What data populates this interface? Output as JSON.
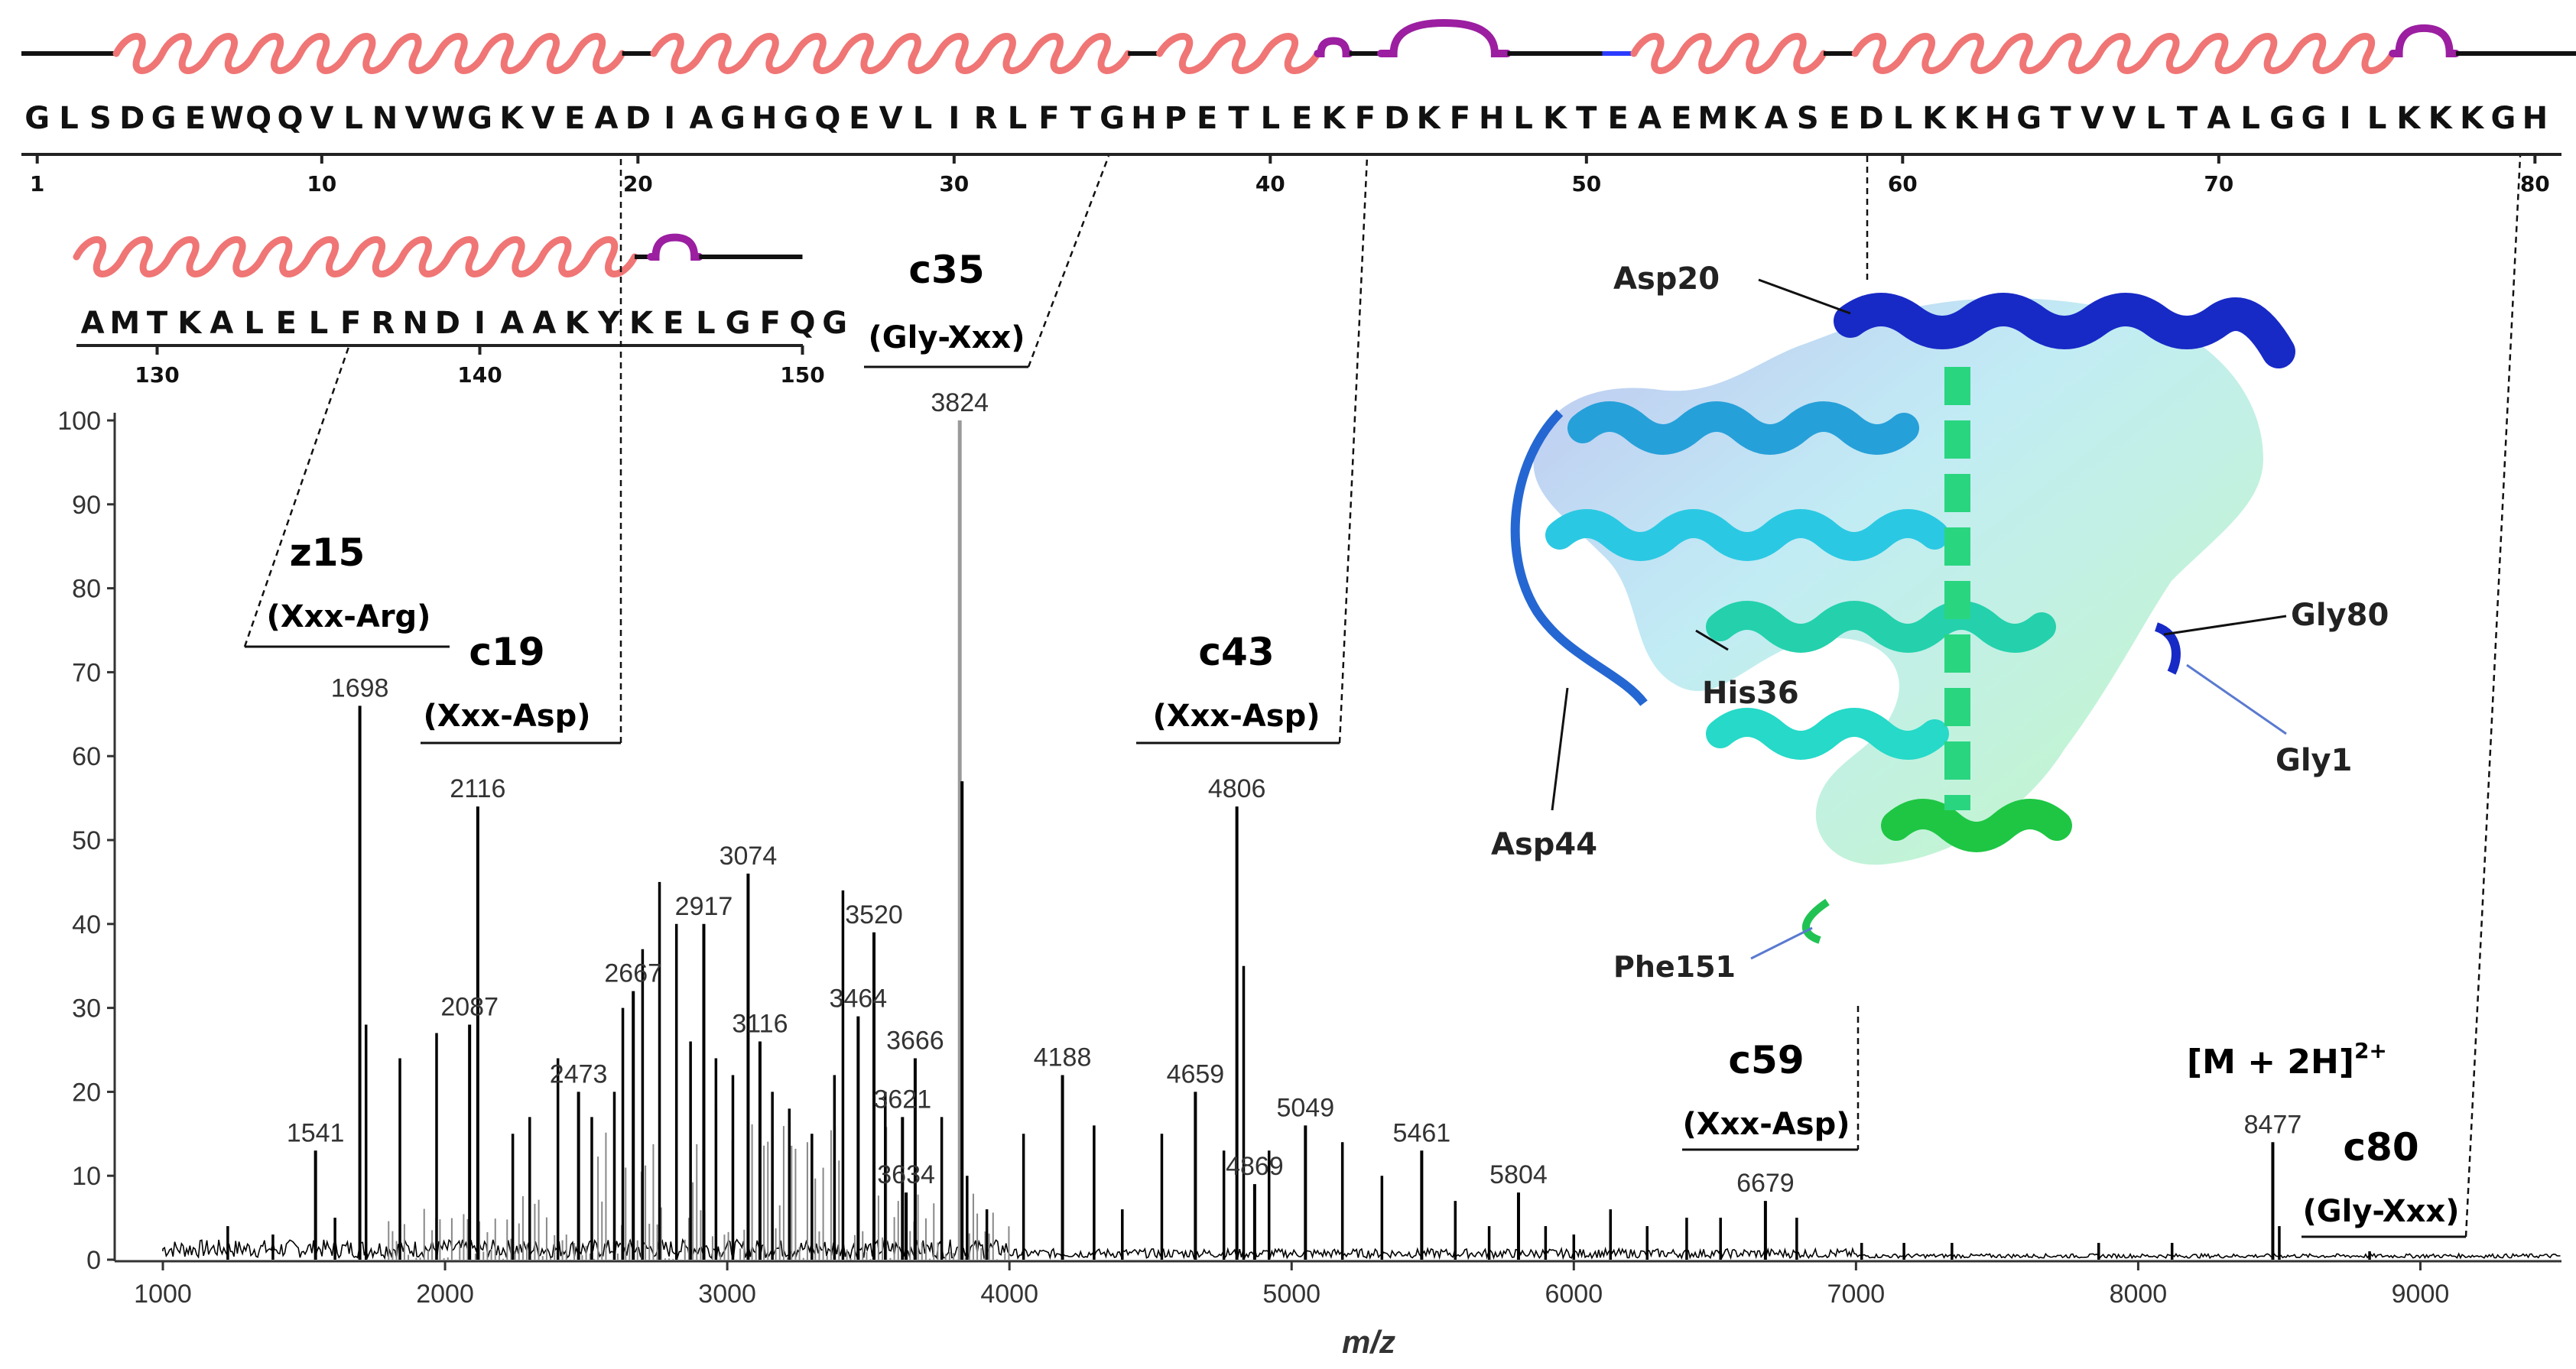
{
  "sequence_top": {
    "text": "GLSDGEWQQVLNVWGKVEADIAGHGQEVLIRLFTGHPETLEKFDKFHLKTEAEMKASEDLKKHGTVVLTALGGILKKKGH",
    "ticks": [
      "1",
      "10",
      "20",
      "30",
      "40",
      "50",
      "60",
      "70",
      "80"
    ]
  },
  "sequence_bottom": {
    "text": "AMTKALELFRNDIAAKYKELGFQG",
    "ticks": [
      "130",
      "140",
      "150"
    ]
  },
  "structure_labels": [
    "Asp20",
    "Gly80",
    "His36",
    "Gly1",
    "Asp44",
    "Phe151"
  ],
  "fragment_labels": [
    {
      "ion": "z15",
      "bond": "(Xxx-Arg)"
    },
    {
      "ion": "c19",
      "bond": "(Xxx-Asp)"
    },
    {
      "ion": "c35",
      "bond": "(Gly-Xxx)"
    },
    {
      "ion": "c43",
      "bond": "(Xxx-Asp)"
    },
    {
      "ion": "c59",
      "bond": "(Xxx-Asp)"
    },
    {
      "ion": "c80",
      "bond": "(Gly-Xxx)"
    }
  ],
  "precursor_label": "[M + 2H]",
  "precursor_charge": "2+",
  "chart_data": {
    "type": "line",
    "xlabel": "m/z",
    "ylabel": "",
    "xlim": [
      1000,
      9500
    ],
    "ylim": [
      0,
      100
    ],
    "x_ticks": [
      "1000",
      "2000",
      "3000",
      "4000",
      "5000",
      "6000",
      "7000",
      "8000",
      "9000"
    ],
    "y_ticks": [
      "0",
      "10",
      "20",
      "30",
      "40",
      "50",
      "60",
      "70",
      "80",
      "90",
      "100"
    ],
    "labeled_peaks": [
      {
        "mz": "1541",
        "x": 1541,
        "y": 13
      },
      {
        "mz": "1698",
        "x": 1698,
        "y": 66
      },
      {
        "mz": "2087",
        "x": 2087,
        "y": 28
      },
      {
        "mz": "2116",
        "x": 2116,
        "y": 54
      },
      {
        "mz": "2473",
        "x": 2473,
        "y": 20
      },
      {
        "mz": "2667",
        "x": 2667,
        "y": 32
      },
      {
        "mz": "2917",
        "x": 2917,
        "y": 40
      },
      {
        "mz": "3074",
        "x": 3074,
        "y": 46
      },
      {
        "mz": "3116",
        "x": 3116,
        "y": 26
      },
      {
        "mz": "3464",
        "x": 3464,
        "y": 29
      },
      {
        "mz": "3520",
        "x": 3520,
        "y": 39
      },
      {
        "mz": "3621",
        "x": 3621,
        "y": 17
      },
      {
        "mz": "3634",
        "x": 3634,
        "y": 8
      },
      {
        "mz": "3666",
        "x": 3666,
        "y": 24
      },
      {
        "mz": "3824",
        "x": 3824,
        "y": 100
      },
      {
        "mz": "4188",
        "x": 4188,
        "y": 22
      },
      {
        "mz": "4659",
        "x": 4659,
        "y": 20
      },
      {
        "mz": "4806",
        "x": 4806,
        "y": 54
      },
      {
        "mz": "4869",
        "x": 4869,
        "y": 9
      },
      {
        "mz": "5049",
        "x": 5049,
        "y": 16
      },
      {
        "mz": "5461",
        "x": 5461,
        "y": 13
      },
      {
        "mz": "5804",
        "x": 5804,
        "y": 8
      },
      {
        "mz": "6679",
        "x": 6679,
        "y": 7
      },
      {
        "mz": "8477",
        "x": 8477,
        "y": 14
      }
    ],
    "other_peaks": [
      {
        "x": 1230,
        "y": 4
      },
      {
        "x": 1390,
        "y": 3
      },
      {
        "x": 1610,
        "y": 5
      },
      {
        "x": 1720,
        "y": 28
      },
      {
        "x": 1840,
        "y": 24
      },
      {
        "x": 1970,
        "y": 27
      },
      {
        "x": 2240,
        "y": 15
      },
      {
        "x": 2300,
        "y": 17
      },
      {
        "x": 2400,
        "y": 24
      },
      {
        "x": 2520,
        "y": 17
      },
      {
        "x": 2600,
        "y": 20
      },
      {
        "x": 2630,
        "y": 30
      },
      {
        "x": 2700,
        "y": 37
      },
      {
        "x": 2760,
        "y": 45
      },
      {
        "x": 2820,
        "y": 40
      },
      {
        "x": 2870,
        "y": 26
      },
      {
        "x": 2960,
        "y": 24
      },
      {
        "x": 3020,
        "y": 22
      },
      {
        "x": 3160,
        "y": 20
      },
      {
        "x": 3220,
        "y": 18
      },
      {
        "x": 3300,
        "y": 15
      },
      {
        "x": 3380,
        "y": 22
      },
      {
        "x": 3410,
        "y": 44
      },
      {
        "x": 3560,
        "y": 20
      },
      {
        "x": 3760,
        "y": 17
      },
      {
        "x": 3850,
        "y": 10
      },
      {
        "x": 3920,
        "y": 6
      },
      {
        "x": 4050,
        "y": 15
      },
      {
        "x": 4300,
        "y": 16
      },
      {
        "x": 4400,
        "y": 6
      },
      {
        "x": 4540,
        "y": 15
      },
      {
        "x": 4760,
        "y": 13
      },
      {
        "x": 4830,
        "y": 35
      },
      {
        "x": 4920,
        "y": 13
      },
      {
        "x": 5180,
        "y": 14
      },
      {
        "x": 5320,
        "y": 10
      },
      {
        "x": 5580,
        "y": 7
      },
      {
        "x": 5700,
        "y": 4
      },
      {
        "x": 5900,
        "y": 4
      },
      {
        "x": 6000,
        "y": 3
      },
      {
        "x": 6130,
        "y": 6
      },
      {
        "x": 6260,
        "y": 4
      },
      {
        "x": 6400,
        "y": 5
      },
      {
        "x": 6520,
        "y": 5
      },
      {
        "x": 6790,
        "y": 5
      },
      {
        "x": 7020,
        "y": 2
      },
      {
        "x": 7170,
        "y": 2
      },
      {
        "x": 7340,
        "y": 2
      },
      {
        "x": 7860,
        "y": 2
      },
      {
        "x": 8120,
        "y": 2
      },
      {
        "x": 8500,
        "y": 4
      },
      {
        "x": 8820,
        "y": 1
      }
    ]
  },
  "colors": {
    "helix": "#f07575",
    "turn": "#9b1fa0",
    "coil": "#111111",
    "hbond": "#2b3bff",
    "spectrum": "#000000",
    "spectrum_grey": "#888888"
  }
}
